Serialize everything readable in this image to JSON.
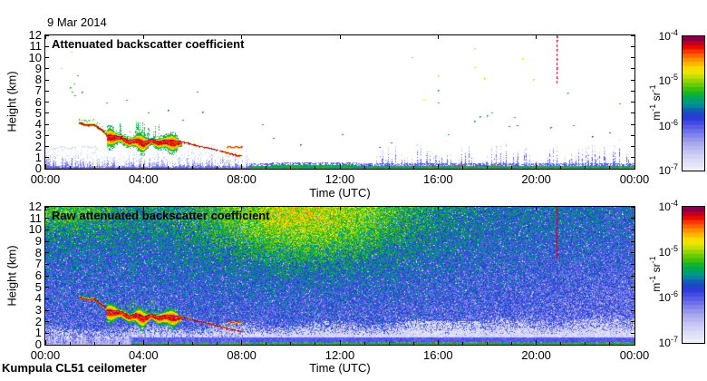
{
  "figure": {
    "date_label": "9 Mar 2014",
    "footer": "Kumpula CL51 ceilometer",
    "background_color": "#ffffff",
    "axis_color": "#000000"
  },
  "colormap": {
    "description": "backscatter log color scale, white-lavender (1e-7) to dark purple (1e-4)",
    "stops": [
      [
        0.0,
        [
          244,
          244,
          252
        ]
      ],
      [
        0.07,
        [
          223,
          223,
          248
        ]
      ],
      [
        0.14,
        [
          199,
          199,
          243
        ]
      ],
      [
        0.21,
        [
          166,
          166,
          238
        ]
      ],
      [
        0.28,
        [
          121,
          123,
          235
        ]
      ],
      [
        0.35,
        [
          72,
          80,
          230
        ]
      ],
      [
        0.4,
        [
          40,
          55,
          215
        ]
      ],
      [
        0.45,
        [
          20,
          90,
          185
        ]
      ],
      [
        0.5,
        [
          0,
          153,
          145
        ]
      ],
      [
        0.54,
        [
          0,
          165,
          95
        ]
      ],
      [
        0.58,
        [
          20,
          180,
          40
        ]
      ],
      [
        0.63,
        [
          90,
          200,
          0
        ]
      ],
      [
        0.68,
        [
          160,
          215,
          0
        ]
      ],
      [
        0.72,
        [
          225,
          232,
          0
        ]
      ],
      [
        0.76,
        [
          255,
          225,
          0
        ]
      ],
      [
        0.8,
        [
          255,
          180,
          0
        ]
      ],
      [
        0.84,
        [
          255,
          130,
          0
        ]
      ],
      [
        0.88,
        [
          255,
          70,
          0
        ]
      ],
      [
        0.92,
        [
          235,
          10,
          0
        ]
      ],
      [
        0.95,
        [
          195,
          0,
          30
        ]
      ],
      [
        0.975,
        [
          150,
          0,
          60
        ]
      ],
      [
        1.0,
        [
          105,
          0,
          90
        ]
      ]
    ]
  },
  "cloud_features": {
    "entry_line_h_km": [
      [
        1.38,
        4.15
      ],
      [
        1.55,
        4.0
      ],
      [
        1.75,
        3.9
      ],
      [
        1.95,
        4.0
      ],
      [
        2.15,
        3.7
      ],
      [
        2.35,
        3.4
      ],
      [
        2.5,
        3.1
      ]
    ],
    "cloud_base_track_h_km": [
      [
        2.5,
        3.0
      ],
      [
        2.8,
        2.95
      ],
      [
        3.1,
        2.9
      ],
      [
        3.4,
        2.5
      ],
      [
        3.7,
        2.7
      ],
      [
        4.0,
        2.4
      ],
      [
        4.3,
        2.65
      ],
      [
        4.6,
        2.45
      ],
      [
        4.9,
        2.6
      ],
      [
        5.2,
        2.5
      ],
      [
        5.5,
        2.45
      ],
      [
        5.8,
        2.3
      ],
      [
        6.1,
        2.1
      ],
      [
        6.4,
        1.95
      ],
      [
        6.7,
        1.85
      ],
      [
        7.0,
        1.65
      ],
      [
        7.3,
        1.5
      ],
      [
        7.6,
        1.3
      ],
      [
        7.95,
        1.15
      ]
    ],
    "cloud_band": {
      "hours": [
        2.5,
        5.55
      ],
      "spike_hours": [
        3.0,
        4.65
      ]
    },
    "detached_dashes_h1_h2_km": [
      [
        7.42,
        8.05,
        1.95
      ]
    ]
  },
  "chart_data": [
    {
      "type": "heatmap",
      "panel": "top",
      "title": "Attenuated backscatter coefficient",
      "xlabel": "Time (UTC)",
      "ylabel": "Height (km)",
      "x_ticks": [
        "00:00",
        "04:00",
        "08:00",
        "12:00",
        "16:00",
        "20:00",
        "00:00"
      ],
      "x_tick_hours": [
        0,
        4,
        8,
        12,
        16,
        20,
        24
      ],
      "x_minor_tick_step_hours": 1,
      "y_ticks_km": [
        0,
        1,
        2,
        3,
        4,
        5,
        6,
        7,
        8,
        9,
        10,
        11,
        12
      ],
      "x_range_hours": [
        0,
        24
      ],
      "y_range_km": [
        0,
        12
      ],
      "colorbar": {
        "tick_labels": [
          "1e-4",
          "1e-5",
          "1e-6",
          "1e-7"
        ],
        "unit": "m^-1 sr^-1",
        "range_min": "1e-7",
        "range_max": "1e-4",
        "orientation": "vertical"
      },
      "features": {
        "precip_streaks": {
          "hours": [
            0,
            8.3
          ],
          "height_km": [
            0.25,
            2.0
          ]
        },
        "boundary_layer": {
          "green_band_from_hour": 8.3,
          "band_top_km": 0.25,
          "thicker_hours": [
            9.2,
            12.7
          ],
          "speckle_columns_hours": [
            13.3,
            24
          ],
          "speckle_max_km": 2.6,
          "red_dots_hours": [
            15.6,
            20.2
          ]
        },
        "data_dropout_line": {
          "hour": 20.83,
          "from_km": 12,
          "to_km": 7.7,
          "style": "dashed"
        },
        "isolated_dots_h_km_t": [
          [
            0.65,
            9.0,
            0.72
          ],
          [
            1.07,
            10.5,
            0.7
          ],
          [
            1.0,
            7.3,
            0.58
          ],
          [
            1.1,
            6.9,
            0.56
          ],
          [
            1.15,
            7.6,
            0.62
          ],
          [
            1.2,
            6.6,
            0.5
          ],
          [
            1.3,
            8.4,
            0.58
          ],
          [
            1.5,
            6.9,
            0.55
          ],
          [
            2.5,
            5.9,
            0.56
          ],
          [
            3.3,
            6.2,
            0.5
          ],
          [
            4.2,
            5.0,
            0.55
          ],
          [
            5.0,
            5.3,
            0.47
          ],
          [
            5.6,
            4.4,
            0.36
          ],
          [
            6.2,
            6.9,
            0.47
          ],
          [
            6.4,
            5.1,
            0.35
          ],
          [
            8.85,
            4.0,
            0.47
          ],
          [
            9.3,
            2.75,
            0.35
          ],
          [
            10.4,
            2.2,
            0.35
          ],
          [
            12.1,
            3.1,
            0.37
          ],
          [
            13.6,
            1.9,
            0.35
          ],
          [
            14.1,
            2.3,
            0.35
          ],
          [
            14.95,
            10.0,
            0.8
          ],
          [
            15.4,
            6.2,
            0.72
          ],
          [
            16.0,
            8.4,
            0.72
          ],
          [
            16.0,
            7.1,
            0.58
          ],
          [
            16.0,
            5.9,
            0.57
          ],
          [
            16.4,
            3.1,
            0.5
          ],
          [
            17.5,
            10.8,
            0.73
          ],
          [
            17.5,
            9.1,
            0.71
          ],
          [
            17.5,
            4.25,
            0.5
          ],
          [
            17.7,
            4.7,
            0.57
          ],
          [
            18.0,
            4.8,
            0.58
          ],
          [
            18.2,
            5.0,
            0.57
          ],
          [
            17.9,
            8.1,
            0.72
          ],
          [
            18.9,
            3.8,
            0.47
          ],
          [
            19.2,
            3.9,
            0.47
          ],
          [
            19.45,
            9.9,
            0.73
          ],
          [
            19.9,
            8.05,
            0.72
          ],
          [
            19.1,
            4.6,
            0.57
          ],
          [
            20.6,
            3.7,
            0.35
          ],
          [
            21.3,
            6.8,
            0.6
          ],
          [
            21.5,
            3.9,
            0.5
          ],
          [
            23.4,
            5.8,
            0.57
          ],
          [
            22.3,
            2.9,
            0.35
          ],
          [
            23.0,
            3.2,
            0.4
          ]
        ]
      }
    },
    {
      "type": "heatmap",
      "panel": "bottom",
      "title": "Raw attenuated backscatter coefficient",
      "xlabel": "Time (UTC)",
      "ylabel": "Height (km)",
      "x_ticks": [
        "00:00",
        "04:00",
        "08:00",
        "12:00",
        "16:00",
        "20:00",
        "00:00"
      ],
      "x_tick_hours": [
        0,
        4,
        8,
        12,
        16,
        20,
        24
      ],
      "x_minor_tick_step_hours": 1,
      "y_ticks_km": [
        0,
        1,
        2,
        3,
        4,
        5,
        6,
        7,
        8,
        9,
        10,
        11,
        12
      ],
      "x_range_hours": [
        0,
        24
      ],
      "y_range_km": [
        0,
        12
      ],
      "colorbar": {
        "tick_labels": [
          "1e-4",
          "1e-5",
          "1e-6",
          "1e-7"
        ],
        "unit": "m^-1 sr^-1",
        "range_min": "1e-7",
        "range_max": "1e-4",
        "orientation": "vertical"
      },
      "features": {
        "noise_field": {
          "base_t": 0.33,
          "height_gain_t": 0.15,
          "jitter_t": 0.13,
          "white_sparkle_prob": 0.03,
          "hot_spot": {
            "hour": 10.5,
            "km": 11.5,
            "sigma_h": 4.0,
            "sigma_km": 4.5,
            "amp_t": 0.24
          },
          "hot_spot2": {
            "hour": 0.8,
            "km": 11.8,
            "sigma_h": 2.2,
            "sigma_km": 2.2,
            "amp_t": 0.12
          },
          "late_cooling_t": 0.05
        },
        "white_band": {
          "bottom_km": 0.05,
          "top_km_start": 1.5,
          "top_km_end": 2.5
        },
        "bright_patch_hours": [
          14.8,
          17.7
        ],
        "surface_green_line": {
          "from_hour": 3.5,
          "top_km": 0.2
        },
        "surface_red_dots_hours": [
          14.2,
          18.5
        ],
        "precip_streaks_hours": [
          0,
          8.3
        ],
        "data_dropout_line": {
          "hour": 20.83,
          "from_km": 12,
          "to_km": 7.2,
          "style": "solid"
        }
      }
    }
  ]
}
